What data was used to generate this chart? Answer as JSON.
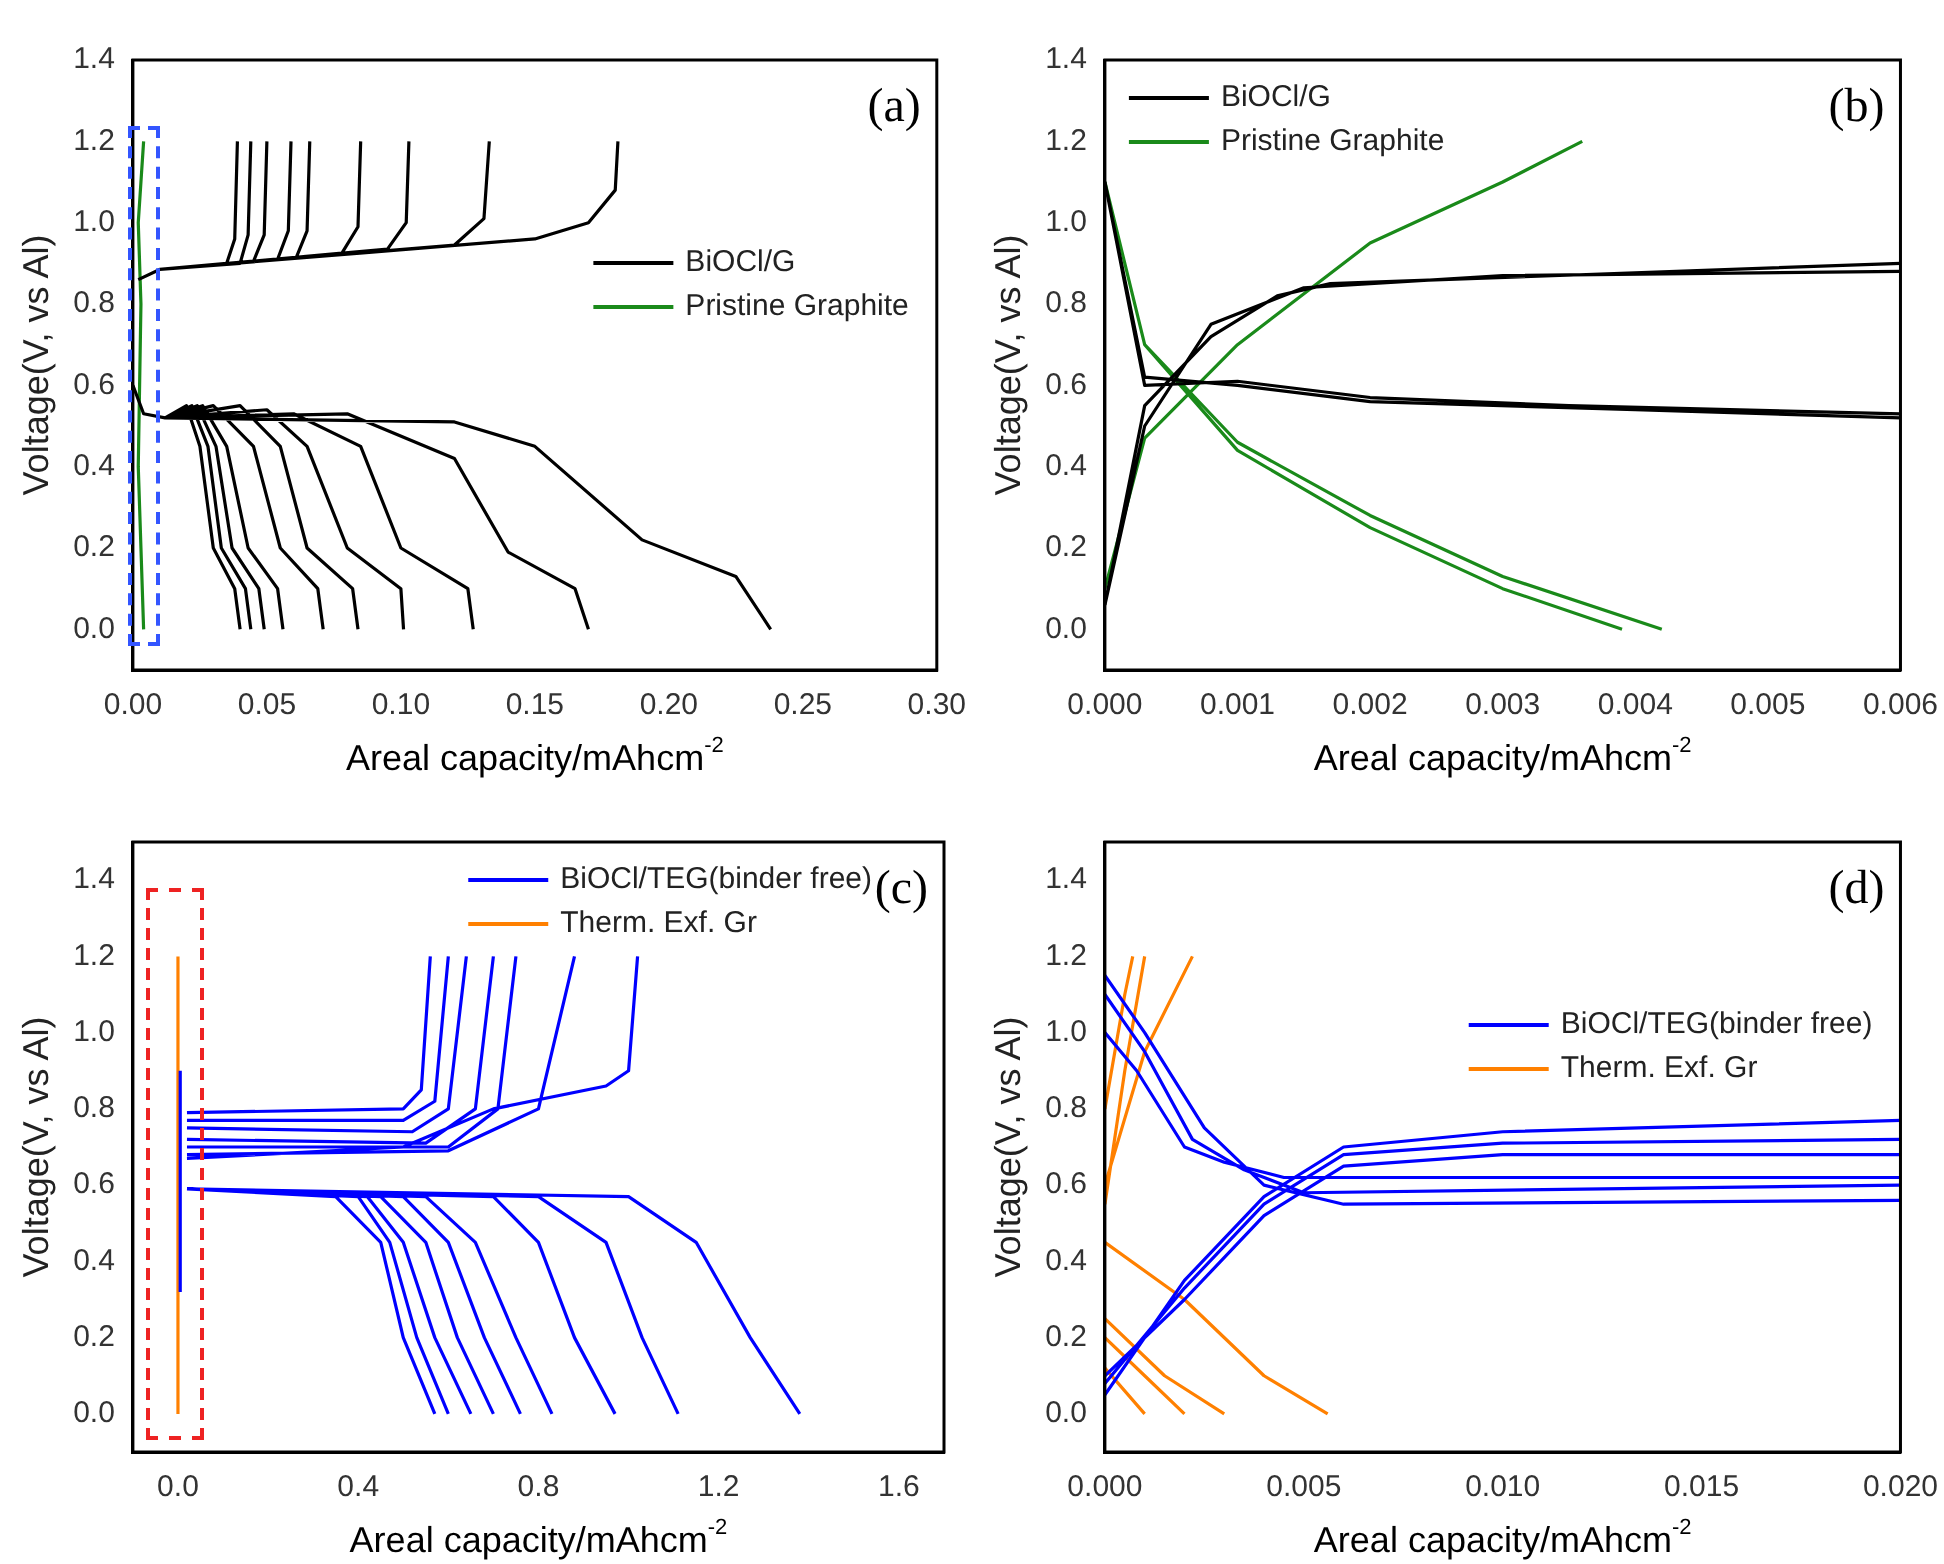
{
  "chart_data": [
    {
      "type": "line",
      "xlabel": "Areal capacity/mAhcm$^{-2}$",
      "ylabel": "Voltage(V, vs Al)",
      "annotations": [
        "(a)"
      ],
      "legend": "right",
      "xlim": [
        0,
        0.3
      ],
      "ylim": [
        -0.1,
        1.4
      ],
      "xticks": [
        {
          "value": 0,
          "label": "0.00"
        },
        {
          "value": 0.05,
          "label": "0.05"
        },
        {
          "value": 0.1,
          "label": "0.10"
        },
        {
          "value": 0.15,
          "label": "0.15"
        },
        {
          "value": 0.2,
          "label": "0.20"
        },
        {
          "value": 0.25,
          "label": "0.25"
        },
        {
          "value": 0.3,
          "label": "0.30"
        }
      ],
      "yticks": [
        {
          "value": 0,
          "label": "0.0"
        },
        {
          "value": 0.2,
          "label": "0.2"
        },
        {
          "value": 0.4,
          "label": "0.4"
        },
        {
          "value": 0.6,
          "label": "0.6"
        },
        {
          "value": 0.8,
          "label": "0.8"
        },
        {
          "value": 1,
          "label": "1.0"
        },
        {
          "value": 1.2,
          "label": "1.2"
        },
        {
          "value": 1.4,
          "label": "1.4"
        }
      ],
      "series": [
        {
          "name": "BiOCl/G",
          "color": "#000000",
          "x": [
            0.002,
            0.01,
            0.035,
            0.038,
            0.039,
            null,
            0.002,
            0.01,
            0.04,
            0.043,
            0.044,
            null,
            0.002,
            0.01,
            0.045,
            0.049,
            0.05,
            null,
            0.002,
            0.01,
            0.054,
            0.058,
            0.059,
            null,
            0.002,
            0.01,
            0.061,
            0.065,
            0.066,
            null,
            0.002,
            0.01,
            0.078,
            0.084,
            0.085,
            null,
            0.002,
            0.01,
            0.095,
            0.102,
            0.103,
            null,
            0.002,
            0.01,
            0.12,
            0.131,
            0.133,
            null,
            0.002,
            0.01,
            0.15,
            0.17,
            0.18,
            0.181,
            null,
            0,
            0.004,
            0.012,
            0.02,
            0.025,
            0.03,
            0.038,
            0.04,
            null,
            0.012,
            0.022,
            0.028,
            0.033,
            0.042,
            0.044,
            null,
            0.012,
            0.024,
            0.031,
            0.037,
            0.047,
            0.049,
            null,
            0.012,
            0.026,
            0.035,
            0.043,
            0.054,
            0.056,
            null,
            0.012,
            0.03,
            0.045,
            0.055,
            0.069,
            0.071,
            null,
            0.012,
            0.04,
            0.055,
            0.065,
            0.082,
            0.084,
            null,
            0.012,
            0.05,
            0.065,
            0.08,
            0.1,
            0.101,
            null,
            0.012,
            0.06,
            0.085,
            0.1,
            0.125,
            0.127,
            null,
            0.012,
            0.08,
            0.12,
            0.14,
            0.165,
            0.17,
            null,
            0.012,
            0.12,
            0.15,
            0.19,
            0.225,
            0.238
          ],
          "values": [
            0.86,
            0.885,
            0.9,
            0.96,
            1.2,
            null,
            0.86,
            0.885,
            0.9,
            0.97,
            1.2,
            null,
            0.86,
            0.885,
            0.905,
            0.97,
            1.2,
            null,
            0.86,
            0.885,
            0.91,
            0.98,
            1.2,
            null,
            0.86,
            0.885,
            0.915,
            0.98,
            1.2,
            null,
            0.86,
            0.885,
            0.925,
            0.99,
            1.2,
            null,
            0.86,
            0.885,
            0.935,
            1.0,
            1.2,
            null,
            0.86,
            0.885,
            0.945,
            1.01,
            1.2,
            null,
            0.86,
            0.885,
            0.96,
            1.0,
            1.08,
            1.2,
            null,
            0.6,
            0.53,
            0.52,
            0.55,
            0.45,
            0.2,
            0.1,
            0,
            null,
            0.52,
            0.55,
            0.45,
            0.2,
            0.1,
            0,
            null,
            0.52,
            0.55,
            0.45,
            0.2,
            0.1,
            0,
            null,
            0.52,
            0.55,
            0.45,
            0.2,
            0.1,
            0,
            null,
            0.52,
            0.55,
            0.45,
            0.2,
            0.1,
            0,
            null,
            0.52,
            0.55,
            0.45,
            0.2,
            0.1,
            0,
            null,
            0.52,
            0.54,
            0.45,
            0.2,
            0.1,
            0,
            null,
            0.52,
            0.53,
            0.45,
            0.2,
            0.1,
            0,
            null,
            0.52,
            0.53,
            0.42,
            0.19,
            0.1,
            0,
            null,
            0.52,
            0.51,
            0.45,
            0.22,
            0.13,
            0
          ]
        },
        {
          "name": "Pristine Graphite",
          "color": "#1a8a1a",
          "x": [
            0.004,
            0.003,
            0.002,
            0.003,
            0.002,
            0.003,
            0.004
          ],
          "values": [
            0,
            0.2,
            0.4,
            0.8,
            1.0,
            1.1,
            1.2
          ]
        }
      ]
    },
    {
      "type": "line",
      "xlabel": "Areal capacity/mAhcm$^{-2}$",
      "ylabel": "Voltage(V, vs Al)",
      "annotations": [
        "(b)"
      ],
      "legend": "top left",
      "xlim": [
        0,
        0.006
      ],
      "ylim": [
        -0.1,
        1.4
      ],
      "xticks": [
        {
          "value": 0,
          "label": "0.000"
        },
        {
          "value": 0.001,
          "label": "0.001"
        },
        {
          "value": 0.002,
          "label": "0.002"
        },
        {
          "value": 0.003,
          "label": "0.003"
        },
        {
          "value": 0.004,
          "label": "0.004"
        },
        {
          "value": 0.005,
          "label": "0.005"
        },
        {
          "value": 0.006,
          "label": "0.006"
        }
      ],
      "yticks": [
        {
          "value": 0,
          "label": "0.0"
        },
        {
          "value": 0.2,
          "label": "0.2"
        },
        {
          "value": 0.4,
          "label": "0.4"
        },
        {
          "value": 0.6,
          "label": "0.6"
        },
        {
          "value": 0.8,
          "label": "0.8"
        },
        {
          "value": 1,
          "label": "1.0"
        },
        {
          "value": 1.2,
          "label": "1.2"
        },
        {
          "value": 1.4,
          "label": "1.4"
        }
      ],
      "series": [
        {
          "name": "BiOCl/G",
          "color": "#000000",
          "x": [
            0,
            0.0003,
            0.0008,
            0.0015,
            0.003,
            0.006,
            null,
            0,
            0.0003,
            0.0008,
            0.0013,
            0.0017,
            0.006,
            null,
            0,
            0.0003,
            0.001,
            0.002,
            0.004,
            0.006,
            null,
            0,
            0.0003,
            0.001,
            0.002,
            0.0035,
            0.006
          ],
          "values": [
            0.06,
            0.5,
            0.75,
            0.84,
            0.87,
            0.88,
            null,
            0.06,
            0.55,
            0.72,
            0.82,
            0.85,
            0.9,
            null,
            1.1,
            0.62,
            0.6,
            0.56,
            0.54,
            0.52,
            null,
            1.1,
            0.6,
            0.61,
            0.57,
            0.55,
            0.53
          ]
        },
        {
          "name": "Pristine Graphite",
          "color": "#1a8a1a",
          "x": [
            0,
            0.0003,
            0.001,
            0.002,
            0.003,
            0.0036,
            null,
            0,
            0.0003,
            0.001,
            0.002,
            0.003,
            0.0039,
            null,
            0,
            0.0003,
            0.001,
            0.002,
            0.003,
            0.0042
          ],
          "values": [
            0.1,
            0.47,
            0.7,
            0.95,
            1.1,
            1.2,
            null,
            1.1,
            0.7,
            0.44,
            0.25,
            0.1,
            0,
            null,
            1.1,
            0.7,
            0.46,
            0.28,
            0.13,
            0
          ]
        }
      ]
    },
    {
      "type": "line",
      "xlabel": "Areal capacity/mAhcm$^{-2}$",
      "ylabel": "Voltage(V, vs Al)",
      "annotations": [
        "(c)"
      ],
      "legend": "top right",
      "xlim": [
        -0.1,
        1.7
      ],
      "ylim": [
        -0.1,
        1.5
      ],
      "xticks": [
        {
          "value": 0,
          "label": "0.0"
        },
        {
          "value": 0.4,
          "label": "0.4"
        },
        {
          "value": 0.8,
          "label": "0.8"
        },
        {
          "value": 1.2,
          "label": "1.2"
        },
        {
          "value": 1.6,
          "label": "1.6"
        }
      ],
      "yticks": [
        {
          "value": 0,
          "label": "0.0"
        },
        {
          "value": 0.2,
          "label": "0.2"
        },
        {
          "value": 0.4,
          "label": "0.4"
        },
        {
          "value": 0.6,
          "label": "0.6"
        },
        {
          "value": 0.8,
          "label": "0.8"
        },
        {
          "value": 1,
          "label": "1.0"
        },
        {
          "value": 1.2,
          "label": "1.2"
        },
        {
          "value": 1.4,
          "label": "1.4"
        }
      ],
      "series": [
        {
          "name": "BiOCl/TEG(binder free)",
          "color": "#0000ff",
          "x": [
            0.02,
            0.5,
            0.54,
            0.56,
            null,
            0.02,
            0.5,
            0.57,
            0.6,
            null,
            0.02,
            0.52,
            0.6,
            0.64,
            null,
            0.02,
            0.55,
            0.66,
            0.7,
            null,
            0.02,
            0.6,
            0.71,
            0.75,
            null,
            0.02,
            0.6,
            0.8,
            0.88,
            null,
            0.02,
            0.5,
            0.7,
            0.95,
            1.0,
            1.02,
            null,
            0.02,
            0.35,
            0.45,
            0.5,
            0.57,
            null,
            0.02,
            0.4,
            0.47,
            0.53,
            0.6,
            null,
            0.02,
            0.42,
            0.5,
            0.57,
            0.65,
            null,
            0.02,
            0.45,
            0.55,
            0.62,
            0.7,
            null,
            0.02,
            0.5,
            0.6,
            0.68,
            0.76,
            null,
            0.02,
            0.55,
            0.66,
            0.75,
            0.83,
            null,
            0.02,
            0.7,
            0.8,
            0.88,
            0.97,
            null,
            0.02,
            0.8,
            0.95,
            1.03,
            1.11,
            null,
            0.02,
            1.0,
            1.15,
            1.27,
            1.38,
            null,
            0.005,
            0.005
          ],
          "values": [
            0.79,
            0.8,
            0.85,
            1.2,
            null,
            0.77,
            0.77,
            0.82,
            1.2,
            null,
            0.75,
            0.74,
            0.8,
            1.2,
            null,
            0.72,
            0.71,
            0.8,
            1.2,
            null,
            0.7,
            0.7,
            0.8,
            1.2,
            null,
            0.68,
            0.69,
            0.8,
            1.2,
            null,
            0.67,
            0.7,
            0.8,
            0.86,
            0.9,
            1.2,
            null,
            0.59,
            0.57,
            0.45,
            0.2,
            0,
            null,
            0.59,
            0.57,
            0.45,
            0.2,
            0,
            null,
            0.59,
            0.57,
            0.45,
            0.2,
            0,
            null,
            0.59,
            0.57,
            0.45,
            0.2,
            0,
            null,
            0.59,
            0.57,
            0.45,
            0.2,
            0,
            null,
            0.59,
            0.57,
            0.45,
            0.2,
            0,
            null,
            0.59,
            0.57,
            0.45,
            0.2,
            0,
            null,
            0.59,
            0.57,
            0.45,
            0.2,
            0,
            null,
            0.59,
            0.57,
            0.45,
            0.2,
            0,
            null,
            0.32,
            0.9
          ]
        },
        {
          "name": "Therm. Exf. Gr",
          "color": "#ff8000",
          "x": [
            0,
            0,
            0
          ],
          "values": [
            0,
            0.6,
            1.2
          ]
        }
      ]
    },
    {
      "type": "line",
      "xlabel": "Areal capacity/mAhcm$^{-2}$",
      "ylabel": "Voltage(V, vs Al)",
      "annotations": [
        "(d)"
      ],
      "legend": "right",
      "xlim": [
        0,
        0.02
      ],
      "ylim": [
        -0.1,
        1.5
      ],
      "xticks": [
        {
          "value": 0,
          "label": "0.000"
        },
        {
          "value": 0.005,
          "label": "0.005"
        },
        {
          "value": 0.01,
          "label": "0.010"
        },
        {
          "value": 0.015,
          "label": "0.015"
        },
        {
          "value": 0.02,
          "label": "0.020"
        }
      ],
      "yticks": [
        {
          "value": 0,
          "label": "0.0"
        },
        {
          "value": 0.2,
          "label": "0.2"
        },
        {
          "value": 0.4,
          "label": "0.4"
        },
        {
          "value": 0.6,
          "label": "0.6"
        },
        {
          "value": 0.8,
          "label": "0.8"
        },
        {
          "value": 1,
          "label": "1.0"
        },
        {
          "value": 1.2,
          "label": "1.2"
        },
        {
          "value": 1.4,
          "label": "1.4"
        }
      ],
      "series": [
        {
          "name": "BiOCl/TEG(binder free)",
          "color": "#0000ff",
          "x": [
            0,
            0.002,
            0.004,
            0.006,
            0.01,
            0.02,
            null,
            0,
            0.002,
            0.004,
            0.006,
            0.01,
            0.02,
            null,
            0,
            0.002,
            0.004,
            0.006,
            0.01,
            0.02,
            null,
            0,
            0.001,
            0.0025,
            0.004,
            0.006,
            0.02,
            null,
            0,
            0.001,
            0.0022,
            0.0035,
            0.005,
            0.02,
            null,
            0,
            0.0008,
            0.002,
            0.003,
            0.0045,
            0.02
          ],
          "values": [
            0.05,
            0.35,
            0.57,
            0.7,
            0.74,
            0.77,
            null,
            0.08,
            0.33,
            0.55,
            0.68,
            0.71,
            0.72,
            null,
            0.1,
            0.3,
            0.52,
            0.65,
            0.68,
            0.68,
            null,
            1.15,
            1.0,
            0.75,
            0.6,
            0.55,
            0.56,
            null,
            1.1,
            0.95,
            0.72,
            0.64,
            0.58,
            0.6,
            null,
            1.0,
            0.9,
            0.7,
            0.66,
            0.62,
            0.62
          ]
        },
        {
          "name": "Therm. Exf. Gr",
          "color": "#ff8000",
          "x": [
            0,
            0.0005,
            0.001,
            null,
            0,
            0.001,
            0.0022,
            null,
            0,
            0.0005,
            0.0007,
            null,
            0,
            0.002,
            0.004,
            0.0056,
            null,
            0,
            0.0015,
            0.003,
            null,
            0,
            0.001,
            0.002,
            null,
            0,
            0.001
          ],
          "values": [
            0.55,
            0.9,
            1.2,
            null,
            0.6,
            0.95,
            1.2,
            null,
            0.8,
            1.1,
            1.2,
            null,
            0.45,
            0.3,
            0.1,
            0,
            null,
            0.25,
            0.1,
            0,
            null,
            0.2,
            0.1,
            0,
            null,
            0.12,
            0
          ]
        }
      ]
    }
  ]
}
